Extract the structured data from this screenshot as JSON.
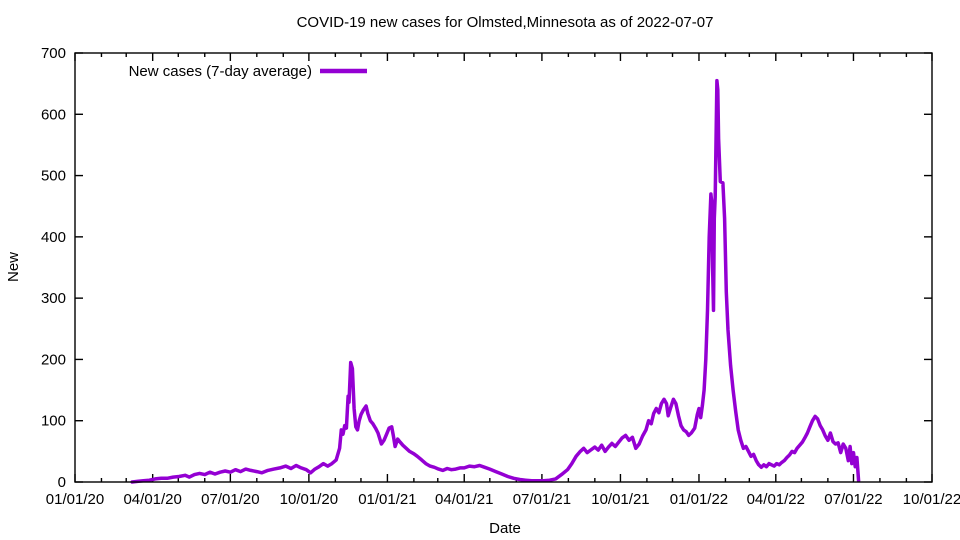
{
  "page": {
    "background": "#ffffff",
    "text_color": "#000000",
    "accent_color": "#9400D3"
  },
  "chart_data": {
    "type": "line",
    "title": "COVID-19 new cases for Olmsted,Minnesota as of 2022-07-07",
    "xlabel": "Date",
    "ylabel": "New",
    "grid": false,
    "legend_position": "top-left",
    "ylim": [
      0,
      700
    ],
    "y_ticks": [
      0,
      100,
      200,
      300,
      400,
      500,
      600,
      700
    ],
    "x_range": [
      "2020-01-01",
      "2022-10-01"
    ],
    "x_ticks": [
      {
        "date": "2020-01-01",
        "label": "01/01/20"
      },
      {
        "date": "2020-04-01",
        "label": "04/01/20"
      },
      {
        "date": "2020-07-01",
        "label": "07/01/20"
      },
      {
        "date": "2020-10-01",
        "label": "10/01/20"
      },
      {
        "date": "2021-01-01",
        "label": "01/01/21"
      },
      {
        "date": "2021-04-01",
        "label": "04/01/21"
      },
      {
        "date": "2021-07-01",
        "label": "07/01/21"
      },
      {
        "date": "2021-10-01",
        "label": "10/01/21"
      },
      {
        "date": "2022-01-01",
        "label": "01/01/22"
      },
      {
        "date": "2022-04-01",
        "label": "04/01/22"
      },
      {
        "date": "2022-07-01",
        "label": "07/01/22"
      },
      {
        "date": "2022-10-01",
        "label": "10/01/22"
      }
    ],
    "x_minor_tick_interval": "month",
    "legend": [
      {
        "label": "New cases (7-day average)",
        "color": "#9400D3"
      }
    ],
    "series": [
      {
        "name": "New cases (7-day average)",
        "color": "#9400D3",
        "points": [
          [
            "2020-03-08",
            0
          ],
          [
            "2020-03-14",
            1
          ],
          [
            "2020-03-21",
            2
          ],
          [
            "2020-03-28",
            3
          ],
          [
            "2020-04-04",
            5
          ],
          [
            "2020-04-11",
            6
          ],
          [
            "2020-04-18",
            6
          ],
          [
            "2020-04-25",
            8
          ],
          [
            "2020-05-02",
            9
          ],
          [
            "2020-05-09",
            11
          ],
          [
            "2020-05-14",
            8
          ],
          [
            "2020-05-20",
            12
          ],
          [
            "2020-05-26",
            14
          ],
          [
            "2020-06-01",
            12
          ],
          [
            "2020-06-07",
            16
          ],
          [
            "2020-06-13",
            13
          ],
          [
            "2020-06-19",
            16
          ],
          [
            "2020-06-25",
            18
          ],
          [
            "2020-07-01",
            16
          ],
          [
            "2020-07-07",
            20
          ],
          [
            "2020-07-13",
            17
          ],
          [
            "2020-07-19",
            21
          ],
          [
            "2020-07-25",
            19
          ],
          [
            "2020-08-01",
            17
          ],
          [
            "2020-08-07",
            15
          ],
          [
            "2020-08-14",
            19
          ],
          [
            "2020-08-21",
            21
          ],
          [
            "2020-08-28",
            23
          ],
          [
            "2020-09-04",
            26
          ],
          [
            "2020-09-10",
            22
          ],
          [
            "2020-09-16",
            27
          ],
          [
            "2020-09-22",
            23
          ],
          [
            "2020-09-28",
            20
          ],
          [
            "2020-10-03",
            15
          ],
          [
            "2020-10-08",
            21
          ],
          [
            "2020-10-13",
            25
          ],
          [
            "2020-10-18",
            30
          ],
          [
            "2020-10-23",
            26
          ],
          [
            "2020-10-28",
            30
          ],
          [
            "2020-11-02",
            36
          ],
          [
            "2020-11-06",
            55
          ],
          [
            "2020-11-08",
            85
          ],
          [
            "2020-11-10",
            78
          ],
          [
            "2020-11-12",
            92
          ],
          [
            "2020-11-14",
            88
          ],
          [
            "2020-11-16",
            140
          ],
          [
            "2020-11-17",
            130
          ],
          [
            "2020-11-19",
            195
          ],
          [
            "2020-11-21",
            185
          ],
          [
            "2020-11-23",
            120
          ],
          [
            "2020-11-25",
            90
          ],
          [
            "2020-11-27",
            85
          ],
          [
            "2020-11-29",
            100
          ],
          [
            "2020-12-01",
            110
          ],
          [
            "2020-12-04",
            118
          ],
          [
            "2020-12-07",
            124
          ],
          [
            "2020-12-09",
            112
          ],
          [
            "2020-12-12",
            100
          ],
          [
            "2020-12-15",
            95
          ],
          [
            "2020-12-18",
            88
          ],
          [
            "2020-12-21",
            80
          ],
          [
            "2020-12-25",
            62
          ],
          [
            "2020-12-28",
            68
          ],
          [
            "2020-12-31",
            78
          ],
          [
            "2021-01-03",
            88
          ],
          [
            "2021-01-06",
            90
          ],
          [
            "2021-01-08",
            75
          ],
          [
            "2021-01-10",
            58
          ],
          [
            "2021-01-13",
            70
          ],
          [
            "2021-01-16",
            65
          ],
          [
            "2021-01-19",
            60
          ],
          [
            "2021-01-23",
            55
          ],
          [
            "2021-01-27",
            50
          ],
          [
            "2021-02-01",
            46
          ],
          [
            "2021-02-05",
            42
          ],
          [
            "2021-02-10",
            36
          ],
          [
            "2021-02-15",
            30
          ],
          [
            "2021-02-20",
            26
          ],
          [
            "2021-02-25",
            24
          ],
          [
            "2021-03-02",
            21
          ],
          [
            "2021-03-07",
            19
          ],
          [
            "2021-03-12",
            22
          ],
          [
            "2021-03-17",
            20
          ],
          [
            "2021-03-22",
            21
          ],
          [
            "2021-03-27",
            23
          ],
          [
            "2021-04-01",
            23
          ],
          [
            "2021-04-07",
            26
          ],
          [
            "2021-04-13",
            25
          ],
          [
            "2021-04-19",
            27
          ],
          [
            "2021-04-25",
            24
          ],
          [
            "2021-05-01",
            21
          ],
          [
            "2021-05-08",
            17
          ],
          [
            "2021-05-15",
            13
          ],
          [
            "2021-05-22",
            9
          ],
          [
            "2021-05-29",
            6
          ],
          [
            "2021-06-05",
            4
          ],
          [
            "2021-06-12",
            3
          ],
          [
            "2021-06-19",
            2
          ],
          [
            "2021-06-26",
            2
          ],
          [
            "2021-07-03",
            2
          ],
          [
            "2021-07-10",
            3
          ],
          [
            "2021-07-17",
            5
          ],
          [
            "2021-07-24",
            12
          ],
          [
            "2021-07-31",
            20
          ],
          [
            "2021-08-05",
            30
          ],
          [
            "2021-08-10",
            42
          ],
          [
            "2021-08-15",
            50
          ],
          [
            "2021-08-19",
            55
          ],
          [
            "2021-08-23",
            48
          ],
          [
            "2021-08-27",
            52
          ],
          [
            "2021-09-01",
            57
          ],
          [
            "2021-09-05",
            52
          ],
          [
            "2021-09-09",
            60
          ],
          [
            "2021-09-13",
            50
          ],
          [
            "2021-09-17",
            57
          ],
          [
            "2021-09-21",
            63
          ],
          [
            "2021-09-25",
            58
          ],
          [
            "2021-09-29",
            65
          ],
          [
            "2021-10-03",
            72
          ],
          [
            "2021-10-07",
            76
          ],
          [
            "2021-10-11",
            68
          ],
          [
            "2021-10-15",
            73
          ],
          [
            "2021-10-19",
            55
          ],
          [
            "2021-10-23",
            62
          ],
          [
            "2021-10-27",
            75
          ],
          [
            "2021-10-31",
            85
          ],
          [
            "2021-11-03",
            100
          ],
          [
            "2021-11-06",
            95
          ],
          [
            "2021-11-09",
            112
          ],
          [
            "2021-11-12",
            120
          ],
          [
            "2021-11-15",
            113
          ],
          [
            "2021-11-18",
            128
          ],
          [
            "2021-11-21",
            135
          ],
          [
            "2021-11-24",
            128
          ],
          [
            "2021-11-26",
            108
          ],
          [
            "2021-11-29",
            122
          ],
          [
            "2021-12-02",
            135
          ],
          [
            "2021-12-05",
            128
          ],
          [
            "2021-12-08",
            108
          ],
          [
            "2021-12-11",
            92
          ],
          [
            "2021-12-14",
            85
          ],
          [
            "2021-12-17",
            82
          ],
          [
            "2021-12-20",
            76
          ],
          [
            "2021-12-23",
            80
          ],
          [
            "2021-12-27",
            88
          ],
          [
            "2021-12-30",
            110
          ],
          [
            "2022-01-01",
            120
          ],
          [
            "2022-01-03",
            105
          ],
          [
            "2022-01-05",
            125
          ],
          [
            "2022-01-07",
            150
          ],
          [
            "2022-01-09",
            200
          ],
          [
            "2022-01-11",
            280
          ],
          [
            "2022-01-13",
            400
          ],
          [
            "2022-01-15",
            470
          ],
          [
            "2022-01-16",
            455
          ],
          [
            "2022-01-17",
            350
          ],
          [
            "2022-01-18",
            280
          ],
          [
            "2022-01-19",
            430
          ],
          [
            "2022-01-20",
            465
          ],
          [
            "2022-01-22",
            655
          ],
          [
            "2022-01-23",
            640
          ],
          [
            "2022-01-24",
            560
          ],
          [
            "2022-01-26",
            490
          ],
          [
            "2022-01-29",
            488
          ],
          [
            "2022-01-31",
            430
          ],
          [
            "2022-02-02",
            310
          ],
          [
            "2022-02-04",
            248
          ],
          [
            "2022-02-07",
            190
          ],
          [
            "2022-02-10",
            150
          ],
          [
            "2022-02-13",
            115
          ],
          [
            "2022-02-16",
            85
          ],
          [
            "2022-02-19",
            68
          ],
          [
            "2022-02-22",
            55
          ],
          [
            "2022-02-25",
            58
          ],
          [
            "2022-02-28",
            50
          ],
          [
            "2022-03-03",
            42
          ],
          [
            "2022-03-06",
            45
          ],
          [
            "2022-03-09",
            35
          ],
          [
            "2022-03-12",
            28
          ],
          [
            "2022-03-15",
            24
          ],
          [
            "2022-03-18",
            28
          ],
          [
            "2022-03-21",
            25
          ],
          [
            "2022-03-24",
            30
          ],
          [
            "2022-03-27",
            28
          ],
          [
            "2022-03-30",
            26
          ],
          [
            "2022-04-02",
            30
          ],
          [
            "2022-04-05",
            28
          ],
          [
            "2022-04-08",
            32
          ],
          [
            "2022-04-11",
            35
          ],
          [
            "2022-04-14",
            40
          ],
          [
            "2022-04-17",
            44
          ],
          [
            "2022-04-20",
            50
          ],
          [
            "2022-04-23",
            48
          ],
          [
            "2022-04-26",
            55
          ],
          [
            "2022-04-29",
            60
          ],
          [
            "2022-05-02",
            65
          ],
          [
            "2022-05-05",
            72
          ],
          [
            "2022-05-08",
            80
          ],
          [
            "2022-05-11",
            90
          ],
          [
            "2022-05-14",
            100
          ],
          [
            "2022-05-17",
            107
          ],
          [
            "2022-05-20",
            103
          ],
          [
            "2022-05-23",
            92
          ],
          [
            "2022-05-26",
            85
          ],
          [
            "2022-05-29",
            75
          ],
          [
            "2022-06-01",
            68
          ],
          [
            "2022-06-04",
            80
          ],
          [
            "2022-06-07",
            66
          ],
          [
            "2022-06-10",
            62
          ],
          [
            "2022-06-13",
            64
          ],
          [
            "2022-06-16",
            48
          ],
          [
            "2022-06-19",
            62
          ],
          [
            "2022-06-22",
            55
          ],
          [
            "2022-06-25",
            35
          ],
          [
            "2022-06-27",
            58
          ],
          [
            "2022-06-29",
            30
          ],
          [
            "2022-07-01",
            48
          ],
          [
            "2022-07-03",
            25
          ],
          [
            "2022-07-05",
            40
          ],
          [
            "2022-07-07",
            2
          ]
        ]
      }
    ]
  }
}
